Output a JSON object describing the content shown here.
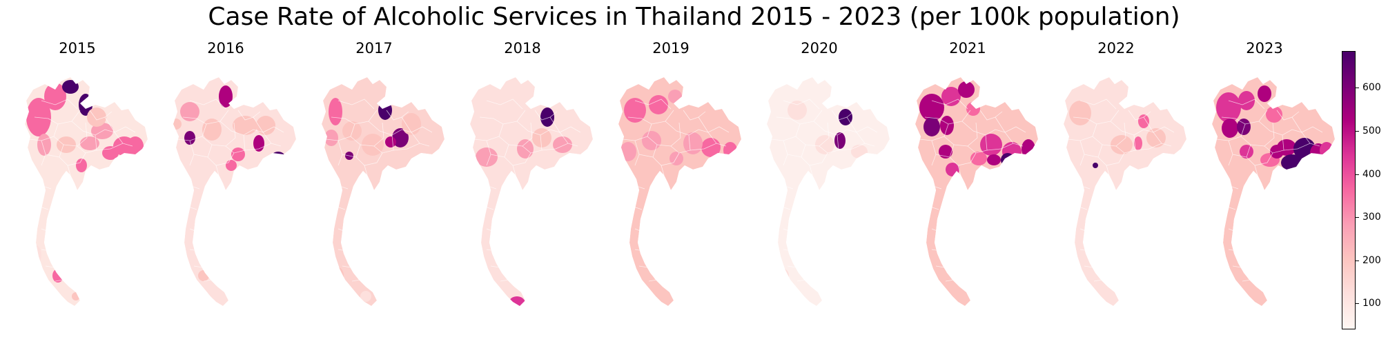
{
  "title": "Case Rate of Alcoholic Services in Thailand 2015 - 2023 (per 100k population)",
  "maps": [
    {
      "year": "2015"
    },
    {
      "year": "2016"
    },
    {
      "year": "2017"
    },
    {
      "year": "2018"
    },
    {
      "year": "2019"
    },
    {
      "year": "2020"
    },
    {
      "year": "2021"
    },
    {
      "year": "2022"
    },
    {
      "year": "2023"
    }
  ],
  "colorbar": {
    "colormap": "RdPu",
    "min": 40,
    "max": 685,
    "ticks": [
      {
        "value": 100,
        "label": "100"
      },
      {
        "value": 200,
        "label": "200"
      },
      {
        "value": 300,
        "label": "300"
      },
      {
        "value": 400,
        "label": "400"
      },
      {
        "value": 500,
        "label": "500"
      },
      {
        "value": 600,
        "label": "600"
      }
    ],
    "colors": [
      "#fff7f3",
      "#fde0dd",
      "#fcc5c0",
      "#fa9fb5",
      "#f768a1",
      "#dd3497",
      "#ae017e",
      "#7a0177",
      "#49006a"
    ]
  }
}
